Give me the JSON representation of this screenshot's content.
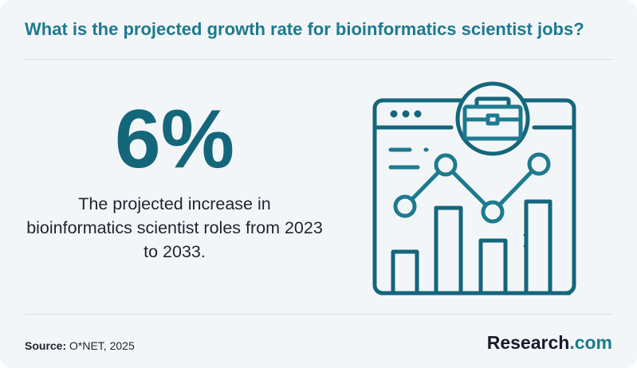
{
  "header": {
    "title": "What is the projected growth rate for bioinformatics scientist jobs?"
  },
  "stat": {
    "value": "6%",
    "description": "The projected increase in bioinformatics scientist roles from 2023 to 2033."
  },
  "footer": {
    "source_label": "Source:",
    "source_value": "O*NET, 2025",
    "brand_name": "Research",
    "brand_tld": ".com"
  },
  "illustration": {
    "icon": "browser-chart-briefcase-icon"
  },
  "colors": {
    "accent": "#1d7a8f",
    "stat": "#14667b",
    "background": "#f3f6f8",
    "text": "#1e2430"
  }
}
